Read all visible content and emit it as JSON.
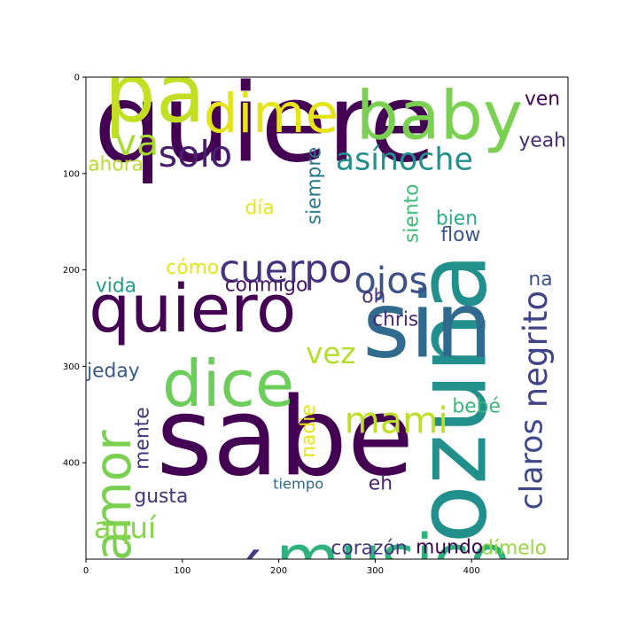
{
  "chart_data": {
    "type": "wordcloud",
    "xlim": [
      0,
      500
    ],
    "ylim": [
      500,
      0
    ],
    "xticks": [
      0,
      100,
      200,
      300,
      400
    ],
    "yticks": [
      0,
      100,
      200,
      300,
      400
    ],
    "grid": false,
    "words": [
      {
        "text": "quiere",
        "x": 8,
        "y": 87,
        "size": 112,
        "rotate": false,
        "color": "#440154"
      },
      {
        "text": "sabe",
        "x": 73,
        "y": 412,
        "size": 112,
        "rotate": false,
        "color": "#440154"
      },
      {
        "text": "ozuna",
        "x": 414,
        "y": 484,
        "size": 100,
        "rotate": true,
        "color": "#21908c"
      },
      {
        "text": "sin",
        "x": 287,
        "y": 290,
        "size": 94,
        "rotate": false,
        "color": "#306a8e"
      },
      {
        "text": "baby",
        "x": 280,
        "y": 64,
        "size": 70,
        "rotate": false,
        "color": "#7ad151"
      },
      {
        "text": "pa",
        "x": 19,
        "y": 46,
        "size": 84,
        "rotate": false,
        "color": "#c2df23"
      },
      {
        "text": "quiero",
        "x": 3,
        "y": 264,
        "size": 68,
        "rotate": false,
        "color": "#440154"
      },
      {
        "text": "musico",
        "x": 197,
        "y": 523,
        "size": 68,
        "rotate": false,
        "color": "#2db27d"
      },
      {
        "text": "dice",
        "x": 79,
        "y": 341,
        "size": 66,
        "rotate": false,
        "color": "#6ccd5a"
      },
      {
        "text": "sé",
        "x": 114,
        "y": 543,
        "size": 66,
        "rotate": false,
        "color": "#443a83"
      },
      {
        "text": "dime",
        "x": 122,
        "y": 57,
        "size": 56,
        "rotate": false,
        "color": "#e5e419"
      },
      {
        "text": "amor",
        "x": 46,
        "y": 502,
        "size": 52,
        "rotate": true,
        "color": "#7ad151"
      },
      {
        "text": "cuerpo",
        "x": 138,
        "y": 213,
        "size": 40,
        "rotate": false,
        "color": "#46327e"
      },
      {
        "text": "solo",
        "x": 75,
        "y": 93,
        "size": 38,
        "rotate": false,
        "color": "#481f70"
      },
      {
        "text": "ojos",
        "x": 278,
        "y": 224,
        "size": 38,
        "rotate": false,
        "color": "#3b528b"
      },
      {
        "text": "mami",
        "x": 268,
        "y": 369,
        "size": 38,
        "rotate": false,
        "color": "#bddf26"
      },
      {
        "text": "negrito",
        "x": 478,
        "y": 343,
        "size": 34,
        "rotate": true,
        "color": "#404387"
      },
      {
        "text": "asínoche",
        "x": 259,
        "y": 96,
        "size": 32,
        "rotate": false,
        "color": "#21908c"
      },
      {
        "text": "va",
        "x": 30,
        "y": 81,
        "size": 38,
        "rotate": false,
        "color": "#a8db34"
      },
      {
        "text": "claros",
        "x": 473,
        "y": 449,
        "size": 32,
        "rotate": true,
        "color": "#3e4989"
      },
      {
        "text": "aquí",
        "x": 8,
        "y": 478,
        "size": 30,
        "rotate": false,
        "color": "#86d549"
      },
      {
        "text": "vez",
        "x": 228,
        "y": 297,
        "size": 30,
        "rotate": false,
        "color": "#b5de2b"
      },
      {
        "text": "siempre",
        "x": 243,
        "y": 153,
        "size": 20,
        "rotate": true,
        "color": "#2a788e"
      },
      {
        "text": "siento",
        "x": 344,
        "y": 172,
        "size": 20,
        "rotate": true,
        "color": "#3fbc73"
      },
      {
        "text": "nadie",
        "x": 237,
        "y": 395,
        "size": 20,
        "rotate": true,
        "color": "#e5e419"
      },
      {
        "text": "mente",
        "x": 65,
        "y": 407,
        "size": 20,
        "rotate": true,
        "color": "#46337f"
      },
      {
        "text": "ven",
        "x": 455,
        "y": 29,
        "size": 20,
        "rotate": false,
        "color": "#440154"
      },
      {
        "text": "yeah",
        "x": 449,
        "y": 72,
        "size": 20,
        "rotate": false,
        "color": "#472c7a"
      },
      {
        "text": "ahora",
        "x": 2,
        "y": 97,
        "size": 20,
        "rotate": false,
        "color": "#b8de29"
      },
      {
        "text": "día",
        "x": 165,
        "y": 142,
        "size": 20,
        "rotate": false,
        "color": "#e5e419"
      },
      {
        "text": "bien",
        "x": 363,
        "y": 153,
        "size": 20,
        "rotate": false,
        "color": "#27ad81"
      },
      {
        "text": "flow",
        "x": 368,
        "y": 170,
        "size": 20,
        "rotate": false,
        "color": "#3a548c"
      },
      {
        "text": "cómo",
        "x": 83,
        "y": 204,
        "size": 20,
        "rotate": false,
        "color": "#e5e419"
      },
      {
        "text": "vida",
        "x": 10,
        "y": 223,
        "size": 20,
        "rotate": false,
        "color": "#1f9f88"
      },
      {
        "text": "conmigo",
        "x": 144,
        "y": 222,
        "size": 20,
        "rotate": false,
        "color": "#481467"
      },
      {
        "text": "na",
        "x": 459,
        "y": 216,
        "size": 20,
        "rotate": false,
        "color": "#3b528b"
      },
      {
        "text": "oh",
        "x": 286,
        "y": 234,
        "size": 20,
        "rotate": false,
        "color": "#46327e"
      },
      {
        "text": "chris",
        "x": 297,
        "y": 258,
        "size": 20,
        "rotate": false,
        "color": "#482878"
      },
      {
        "text": "jeday",
        "x": 1,
        "y": 311,
        "size": 20,
        "rotate": false,
        "color": "#38598c"
      },
      {
        "text": "bebé",
        "x": 380,
        "y": 348,
        "size": 20,
        "rotate": false,
        "color": "#37b878"
      },
      {
        "text": "eh",
        "x": 293,
        "y": 428,
        "size": 20,
        "rotate": false,
        "color": "#482173"
      },
      {
        "text": "gusta",
        "x": 50,
        "y": 441,
        "size": 20,
        "rotate": false,
        "color": "#46327e"
      },
      {
        "text": "tiempo",
        "x": 194,
        "y": 427,
        "size": 15,
        "rotate": false,
        "color": "#31688e"
      },
      {
        "text": "corazón",
        "x": 254,
        "y": 495,
        "size": 20,
        "rotate": false,
        "color": "#453781"
      },
      {
        "text": "mundo",
        "x": 342,
        "y": 494,
        "size": 20,
        "rotate": false,
        "color": "#440154"
      },
      {
        "text": "dímelo",
        "x": 410,
        "y": 495,
        "size": 20,
        "rotate": false,
        "color": "#95d840"
      }
    ]
  }
}
